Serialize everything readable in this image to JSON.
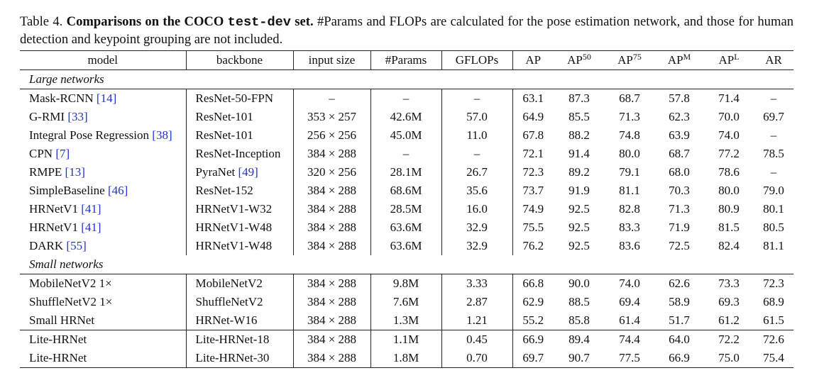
{
  "caption": {
    "parts": [
      {
        "text": "Table 4. ",
        "style": "normal"
      },
      {
        "text": "Comparisons on the COCO ",
        "style": "bold"
      },
      {
        "text": "test-dev",
        "style": "mono"
      },
      {
        "text": " set.",
        "style": "bold"
      },
      {
        "text": " #Params and FLOPs are calculated for the pose estimation network, and those for human detection and keypoint grouping are not included.",
        "style": "normal"
      }
    ]
  },
  "table": {
    "header": [
      {
        "text": "model"
      },
      {
        "text": "backbone"
      },
      {
        "text": "input size"
      },
      {
        "text": "#Params"
      },
      {
        "text": "GFLOPs"
      },
      {
        "text": "AP"
      },
      {
        "text": "AP",
        "sup": "50"
      },
      {
        "text": "AP",
        "sup": "75"
      },
      {
        "text": "AP",
        "sup": "M"
      },
      {
        "text": "AP",
        "sup": "L"
      },
      {
        "text": "AR"
      }
    ],
    "sections": [
      {
        "label": "Large networks",
        "groups": [
          [
            {
              "model": "Mask-RCNN",
              "model_cite": "[14]",
              "backbone": "ResNet-50-FPN",
              "cells": [
                "–",
                "–",
                "–",
                "63.1",
                "87.3",
                "68.7",
                "57.8",
                "71.4",
                "–"
              ]
            },
            {
              "model": "G-RMI",
              "model_cite": "[33]",
              "backbone": "ResNet-101",
              "cells": [
                "353 × 257",
                "42.6M",
                "57.0",
                "64.9",
                "85.5",
                "71.3",
                "62.3",
                "70.0",
                "69.7"
              ]
            },
            {
              "model": "Integral Pose Regression",
              "model_cite": "[38]",
              "backbone": "ResNet-101",
              "cells": [
                "256 × 256",
                "45.0M",
                "11.0",
                "67.8",
                "88.2",
                "74.8",
                "63.9",
                "74.0",
                "–"
              ]
            },
            {
              "model": "CPN",
              "model_cite": "[7]",
              "backbone": "ResNet-Inception",
              "cells": [
                "384 × 288",
                "–",
                "–",
                "72.1",
                "91.4",
                "80.0",
                "68.7",
                "77.2",
                "78.5"
              ]
            },
            {
              "model": "RMPE",
              "model_cite": "[13]",
              "backbone": "PyraNet",
              "backbone_cite": "[49]",
              "cells": [
                "320 × 256",
                "28.1M",
                "26.7",
                "72.3",
                "89.2",
                "79.1",
                "68.0",
                "78.6",
                "–"
              ]
            },
            {
              "model": "SimpleBaseline",
              "model_cite": "[46]",
              "backbone": "ResNet-152",
              "cells": [
                "384 × 288",
                "68.6M",
                "35.6",
                "73.7",
                "91.9",
                "81.1",
                "70.3",
                "80.0",
                "79.0"
              ]
            },
            {
              "model": "HRNetV1",
              "model_cite": "[41]",
              "backbone": "HRNetV1-W32",
              "cells": [
                "384 × 288",
                "28.5M",
                "16.0",
                "74.9",
                "92.5",
                "82.8",
                "71.3",
                "80.9",
                "80.1"
              ]
            },
            {
              "model": "HRNetV1",
              "model_cite": "[41]",
              "backbone": "HRNetV1-W48",
              "cells": [
                "384 × 288",
                "63.6M",
                "32.9",
                "75.5",
                "92.5",
                "83.3",
                "71.9",
                "81.5",
                "80.5"
              ]
            },
            {
              "model": "DARK",
              "model_cite": "[55]",
              "backbone": "HRNetV1-W48",
              "cells": [
                "384 × 288",
                "63.6M",
                "32.9",
                "76.2",
                "92.5",
                "83.6",
                "72.5",
                "82.4",
                "81.1"
              ]
            }
          ]
        ]
      },
      {
        "label": "Small networks",
        "groups": [
          [
            {
              "model": "MobileNetV2 1×",
              "backbone": "MobileNetV2",
              "cells": [
                "384 × 288",
                "9.8M",
                "3.33",
                "66.8",
                "90.0",
                "74.0",
                "62.6",
                "73.3",
                "72.3"
              ]
            },
            {
              "model": "ShuffleNetV2 1×",
              "backbone": "ShuffleNetV2",
              "cells": [
                "384 × 288",
                "7.6M",
                "2.87",
                "62.9",
                "88.5",
                "69.4",
                "58.9",
                "69.3",
                "68.9"
              ]
            },
            {
              "model": "Small HRNet",
              "backbone": "HRNet-W16",
              "cells": [
                "384 × 288",
                "1.3M",
                "1.21",
                "55.2",
                "85.8",
                "61.4",
                "51.7",
                "61.2",
                "61.5"
              ]
            }
          ],
          [
            {
              "model": "Lite-HRNet",
              "backbone": "Lite-HRNet-18",
              "cells": [
                "384 × 288",
                "1.1M",
                "0.45",
                "66.9",
                "89.4",
                "74.4",
                "64.0",
                "72.2",
                "72.6"
              ]
            },
            {
              "model": "Lite-HRNet",
              "backbone": "Lite-HRNet-30",
              "cells": [
                "384 × 288",
                "1.8M",
                "0.70",
                "69.7",
                "90.7",
                "77.5",
                "66.9",
                "75.0",
                "75.4"
              ]
            }
          ]
        ]
      }
    ]
  }
}
